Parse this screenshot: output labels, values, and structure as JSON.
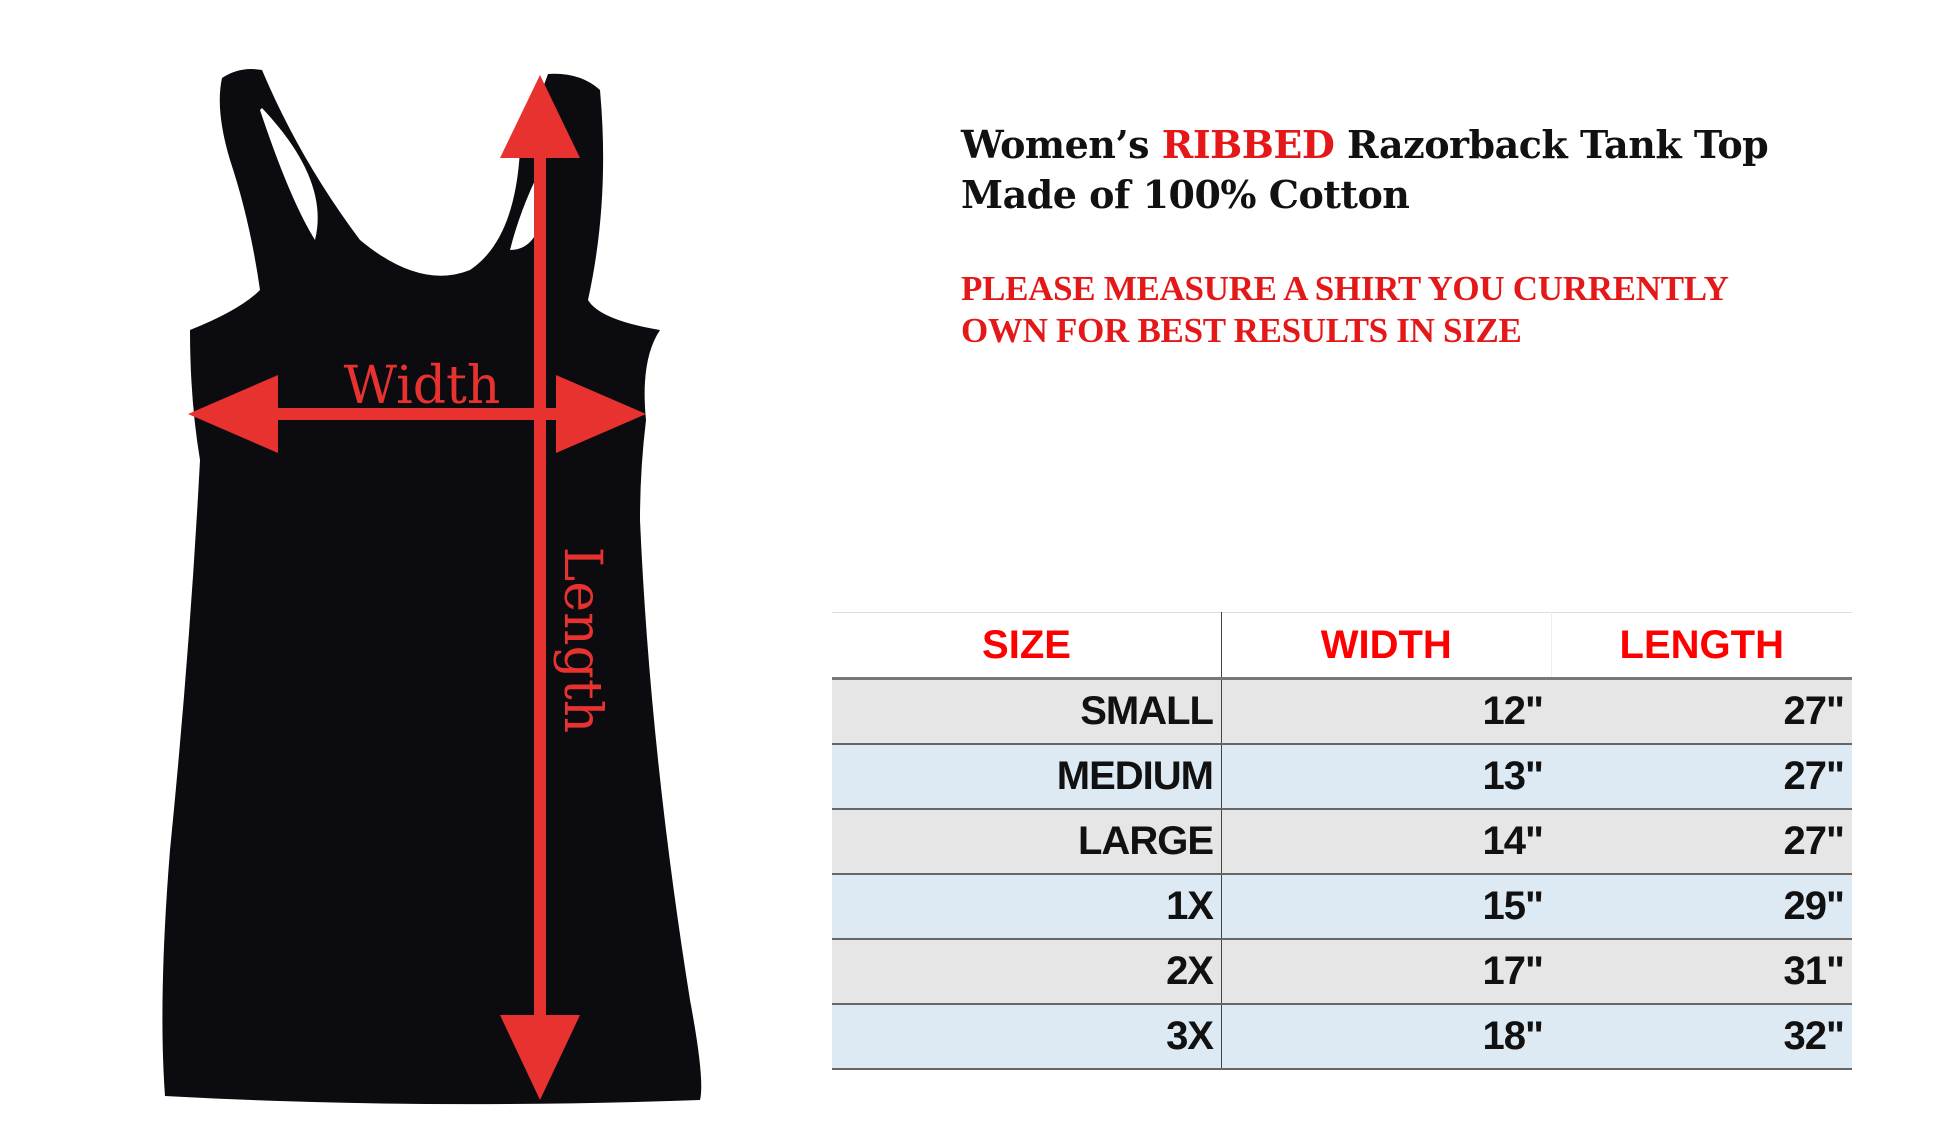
{
  "title": {
    "line1_before": "Women’s ",
    "line1_highlight": "RIBBED",
    "line1_after": " Razorback Tank Top",
    "line2": "Made of 100% Cotton"
  },
  "notice": {
    "line1": "PLEASE MEASURE A SHIRT YOU CURRENTLY",
    "line2": "OWN FOR BEST RESULTS IN SIZE"
  },
  "diagram": {
    "width_label": "Width",
    "length_label": "Length",
    "arrow_color": "#e8322f",
    "shirt_color": "#0c0c10"
  },
  "table": {
    "headers": [
      "SIZE",
      "WIDTH",
      "LENGTH"
    ],
    "rows": [
      [
        "SMALL",
        "12\"",
        "27\""
      ],
      [
        "MEDIUM",
        "13\"",
        "27\""
      ],
      [
        "LARGE",
        "14\"",
        "27\""
      ],
      [
        "1X",
        "15\"",
        "29\""
      ],
      [
        "2X",
        "17\"",
        "31\""
      ],
      [
        "3X",
        "18\"",
        "32\""
      ]
    ]
  }
}
